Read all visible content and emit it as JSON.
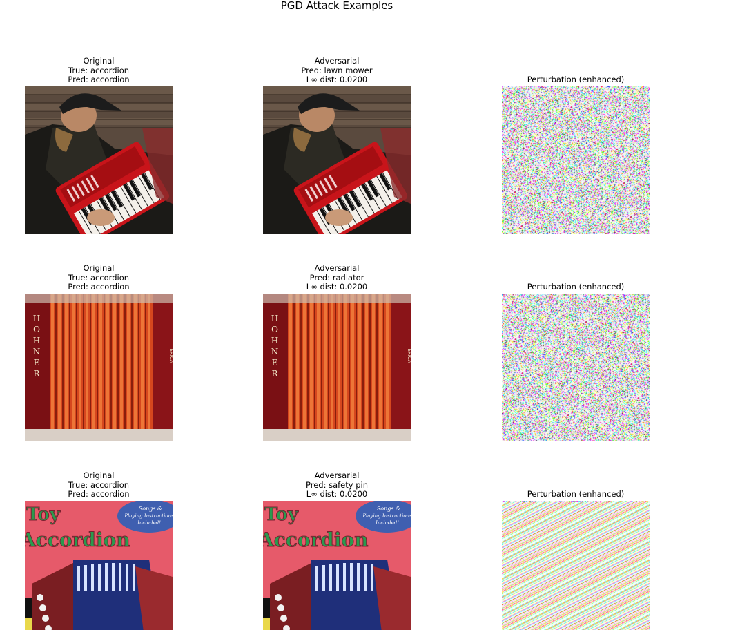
{
  "figure": {
    "title": "PGD Attack Examples"
  },
  "rows": [
    {
      "original": {
        "lines": [
          "Original",
          "True: accordion",
          "Pred: accordion"
        ]
      },
      "adversarial": {
        "lines": [
          "Adversarial",
          "Pred: lawn mower",
          "L∞ dist: 0.0200"
        ]
      },
      "perturbation": {
        "lines": [
          "Perturbation (enhanced)"
        ]
      },
      "image_subject": "person-playing-red-accordion-photo"
    },
    {
      "original": {
        "lines": [
          "Original",
          "True: accordion",
          "Pred: accordion"
        ]
      },
      "adversarial": {
        "lines": [
          "Adversarial",
          "Pred: radiator",
          "L∞ dist: 0.0200"
        ]
      },
      "perturbation": {
        "lines": [
          "Perturbation (enhanced)"
        ]
      },
      "image_subject": "hohner-accordion-bellows-closeup-photo",
      "brand_left": "HOHNER",
      "brand_right": "ERICA"
    },
    {
      "original": {
        "lines": [
          "Original",
          "True: accordion",
          "Pred: accordion"
        ]
      },
      "adversarial": {
        "lines": [
          "Adversarial",
          "Pred: safety pin",
          "L∞ dist: 0.0200"
        ]
      },
      "perturbation": {
        "lines": [
          "Perturbation (enhanced)"
        ]
      },
      "image_subject": "toy-accordion-box-cover-photo",
      "cover_title": [
        "Toy",
        "Accordion"
      ],
      "cover_badge": [
        "Songs &",
        "Playing Instructions",
        "Included!"
      ]
    }
  ],
  "colors": {
    "accordion_red": "#c8141a",
    "bellows_orange": "#e0401a",
    "cover_pink": "#e65a6a",
    "badge_blue": "#3f5fb0"
  }
}
